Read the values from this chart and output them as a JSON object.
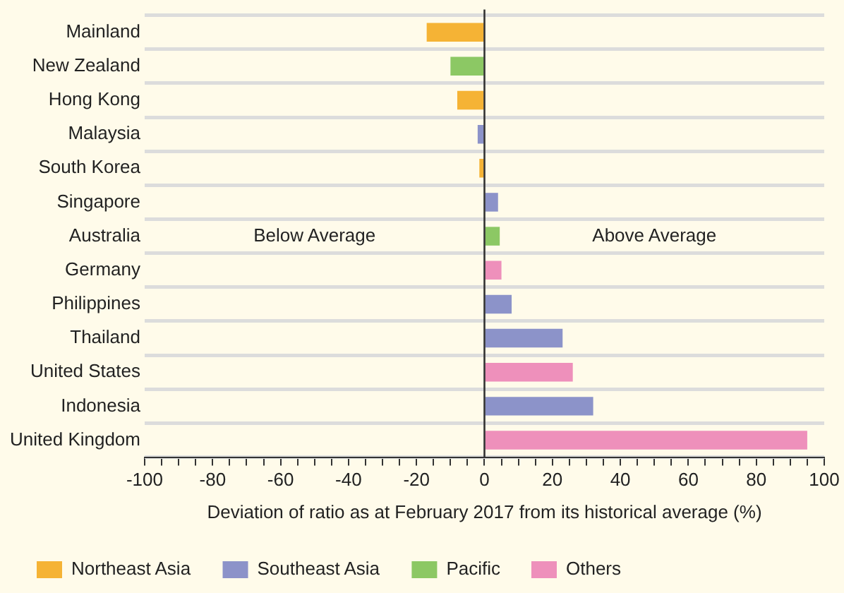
{
  "chart_data": {
    "type": "bar",
    "orientation": "horizontal",
    "categories": [
      "Mainland",
      "New Zealand",
      "Hong Kong",
      "Malaysia",
      "South Korea",
      "Singapore",
      "Australia",
      "Germany",
      "Philippines",
      "Thailand",
      "United States",
      "Indonesia",
      "United Kingdom"
    ],
    "series": [
      {
        "name": "Northeast Asia",
        "color": "#f5b335",
        "values": [
          -17,
          null,
          -8,
          null,
          -1.5,
          null,
          null,
          null,
          null,
          null,
          null,
          null,
          null
        ]
      },
      {
        "name": "Southeast Asia",
        "color": "#8c93c9",
        "values": [
          null,
          null,
          null,
          -2,
          null,
          4,
          null,
          null,
          8,
          23,
          null,
          32,
          null
        ]
      },
      {
        "name": "Pacific",
        "color": "#8cc864",
        "values": [
          null,
          -10,
          null,
          null,
          null,
          null,
          4.5,
          null,
          null,
          null,
          null,
          null,
          null
        ]
      },
      {
        "name": "Others",
        "color": "#ee90bb",
        "values": [
          null,
          null,
          null,
          null,
          null,
          null,
          null,
          5,
          null,
          null,
          26,
          null,
          95
        ]
      }
    ],
    "xlabel": "Deviation of ratio as at February 2017 from its historical average (%)",
    "xlim": [
      -100,
      100
    ],
    "xticks": [
      -100,
      {
        "value": -95,
        "label": null
      },
      {
        "value": -90,
        "label": null
      },
      {
        "value": -85,
        "label": null
      },
      -80,
      {
        "value": -75,
        "label": null
      },
      {
        "value": -70,
        "label": null
      },
      {
        "value": -65,
        "label": null
      },
      -60,
      {
        "value": -55,
        "label": null
      },
      {
        "value": -50,
        "label": null
      },
      {
        "value": -45,
        "label": null
      },
      -40,
      {
        "value": -35,
        "label": null
      },
      {
        "value": -30,
        "label": null
      },
      {
        "value": -25,
        "label": null
      },
      -20,
      {
        "value": -15,
        "label": null
      },
      {
        "value": -10,
        "label": null
      },
      {
        "value": -5,
        "label": null
      },
      0,
      {
        "value": 5,
        "label": null
      },
      {
        "value": 10,
        "label": null
      },
      {
        "value": 15,
        "label": null
      },
      20,
      {
        "value": 25,
        "label": null
      },
      {
        "value": 30,
        "label": null
      },
      {
        "value": 35,
        "label": null
      },
      40,
      {
        "value": 45,
        "label": null
      },
      {
        "value": 50,
        "label": null
      },
      {
        "value": 55,
        "label": null
      },
      60,
      {
        "value": 65,
        "label": null
      },
      {
        "value": 70,
        "label": null
      },
      {
        "value": 75,
        "label": null
      },
      80,
      {
        "value": 85,
        "label": null
      },
      {
        "value": 90,
        "label": null
      },
      {
        "value": 95,
        "label": null
      },
      100
    ],
    "ref_lines": [
      {
        "axis": "x",
        "value": 0,
        "color": "#333333"
      }
    ],
    "annotations": [
      "Below Average",
      "Above Average"
    ],
    "grid": "y",
    "legend": "bottom"
  }
}
